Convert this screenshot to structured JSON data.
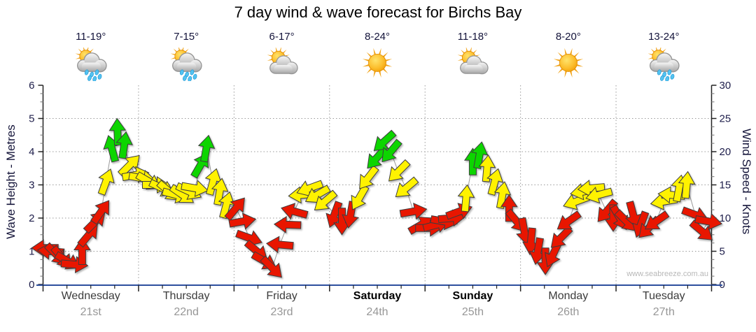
{
  "title": "7 day wind & wave forecast for Birchs Bay",
  "watermark": "www.seabreeze.com.au",
  "days": [
    {
      "name": "Wednesday",
      "date": "21st",
      "temp": "11-19°",
      "icon": "sun-cloud-rain",
      "bold": false
    },
    {
      "name": "Thursday",
      "date": "22nd",
      "temp": "7-15°",
      "icon": "sun-cloud-rain",
      "bold": false
    },
    {
      "name": "Friday",
      "date": "23rd",
      "temp": "6-17°",
      "icon": "sun-cloud",
      "bold": false
    },
    {
      "name": "Saturday",
      "date": "24th",
      "temp": "8-24°",
      "icon": "sun",
      "bold": true
    },
    {
      "name": "Sunday",
      "date": "25th",
      "temp": "11-18°",
      "icon": "sun-cloud",
      "bold": true
    },
    {
      "name": "Monday",
      "date": "26th",
      "temp": "8-20°",
      "icon": "sun",
      "bold": false
    },
    {
      "name": "Tuesday",
      "date": "27th",
      "temp": "13-24°",
      "icon": "sun-cloud-rain",
      "bold": false
    }
  ],
  "chart_data": {
    "type": "wind-arrow-timeseries",
    "x_categories": [
      "Wednesday 21st",
      "Thursday 22nd",
      "Friday 23rd",
      "Saturday 24th",
      "Sunday 25th",
      "Monday 26th",
      "Tuesday 27th"
    ],
    "y_left": {
      "label": "Wave Height - Metres",
      "range": [
        0,
        6
      ],
      "ticks": [
        0,
        1,
        2,
        3,
        4,
        5,
        6
      ]
    },
    "y_right": {
      "label": "Wind Speed - Knots",
      "range": [
        0,
        30
      ],
      "ticks": [
        0,
        5,
        10,
        15,
        20,
        25,
        30
      ]
    },
    "grid": {
      "horizontal_every_knots": 5,
      "vertical_at_day_boundaries": true,
      "style": "dotted"
    },
    "legend_position": "none",
    "speed_colors": {
      "red": "#e81505",
      "yellow": "#fff200",
      "green": "#0bd500"
    },
    "line_color": "#9a9a9a",
    "axis_colors": {
      "x_axis": "#2d4f9e",
      "y_axes": "#222222"
    },
    "arrow_columns": [
      "day_index",
      "day_fraction",
      "knots",
      "color",
      "direction_deg_cw_from_east"
    ],
    "arrows": [
      [
        0,
        0.02,
        5.5,
        "red",
        180
      ],
      [
        0,
        0.08,
        5,
        "red",
        185
      ],
      [
        0,
        0.14,
        4.5,
        "red",
        45
      ],
      [
        0,
        0.2,
        4,
        "red",
        50
      ],
      [
        0,
        0.26,
        3.5,
        "red",
        30
      ],
      [
        0,
        0.33,
        3,
        "red",
        5
      ],
      [
        0,
        0.41,
        5,
        "red",
        270
      ],
      [
        0,
        0.48,
        7.5,
        "red",
        310
      ],
      [
        0,
        0.55,
        9.5,
        "red",
        315
      ],
      [
        0,
        0.61,
        11,
        "red",
        305
      ],
      [
        0,
        0.66,
        15.5,
        "yellow",
        290
      ],
      [
        0,
        0.72,
        20.5,
        "green",
        255
      ],
      [
        0,
        0.78,
        23,
        "green",
        268
      ],
      [
        0,
        0.85,
        21,
        "green",
        278
      ],
      [
        0,
        0.91,
        18,
        "yellow",
        315
      ],
      [
        0,
        0.97,
        16.5,
        "yellow",
        350
      ],
      [
        1,
        0.04,
        16,
        "yellow",
        10
      ],
      [
        1,
        0.11,
        15.5,
        "yellow",
        30
      ],
      [
        1,
        0.18,
        15,
        "yellow",
        0
      ],
      [
        1,
        0.25,
        14.5,
        "yellow",
        25
      ],
      [
        1,
        0.32,
        14,
        "yellow",
        40
      ],
      [
        1,
        0.39,
        13.5,
        "yellow",
        15
      ],
      [
        1,
        0.46,
        13.5,
        "yellow",
        35
      ],
      [
        1,
        0.53,
        14,
        "yellow",
        25
      ],
      [
        1,
        0.59,
        14.5,
        "yellow",
        10
      ],
      [
        1,
        0.65,
        18,
        "green",
        300
      ],
      [
        1,
        0.71,
        20.5,
        "green",
        280
      ],
      [
        1,
        0.78,
        15.5,
        "yellow",
        285
      ],
      [
        1,
        0.85,
        14,
        "yellow",
        280
      ],
      [
        1,
        0.92,
        12,
        "yellow",
        285
      ],
      [
        2,
        0.02,
        11.5,
        "red",
        310
      ],
      [
        2,
        0.09,
        9.5,
        "red",
        350
      ],
      [
        2,
        0.16,
        7,
        "red",
        20
      ],
      [
        2,
        0.24,
        5,
        "red",
        40
      ],
      [
        2,
        0.32,
        3.5,
        "red",
        30
      ],
      [
        2,
        0.4,
        2.5,
        "red",
        45
      ],
      [
        2,
        0.48,
        6,
        "red",
        185
      ],
      [
        2,
        0.56,
        9,
        "red",
        182
      ],
      [
        2,
        0.63,
        11,
        "red",
        195
      ],
      [
        2,
        0.71,
        13.5,
        "yellow",
        175
      ],
      [
        2,
        0.79,
        14.5,
        "yellow",
        160
      ],
      [
        2,
        0.87,
        13.5,
        "yellow",
        150
      ],
      [
        2,
        0.95,
        12.5,
        "yellow",
        140
      ],
      [
        3,
        0.05,
        10.5,
        "red",
        110
      ],
      [
        3,
        0.13,
        9.5,
        "red",
        90
      ],
      [
        3,
        0.22,
        10.5,
        "red",
        100
      ],
      [
        3,
        0.31,
        13,
        "yellow",
        120
      ],
      [
        3,
        0.4,
        16,
        "yellow",
        128
      ],
      [
        3,
        0.49,
        19,
        "green",
        132
      ],
      [
        3,
        0.57,
        21.5,
        "green",
        138
      ],
      [
        3,
        0.64,
        20,
        "green",
        130
      ],
      [
        3,
        0.72,
        17,
        "yellow",
        135
      ],
      [
        3,
        0.8,
        14.5,
        "yellow",
        140
      ],
      [
        3,
        0.88,
        11,
        "red",
        350
      ],
      [
        3,
        0.96,
        9,
        "red",
        330
      ],
      [
        4,
        0.04,
        8.5,
        "red",
        0
      ],
      [
        4,
        0.12,
        9,
        "red",
        345
      ],
      [
        4,
        0.2,
        9.5,
        "red",
        10
      ],
      [
        4,
        0.28,
        10,
        "red",
        355
      ],
      [
        4,
        0.36,
        11,
        "red",
        340
      ],
      [
        4,
        0.43,
        13,
        "yellow",
        275
      ],
      [
        4,
        0.5,
        18.5,
        "green",
        270
      ],
      [
        4,
        0.57,
        19.5,
        "green",
        280
      ],
      [
        4,
        0.65,
        17.5,
        "yellow",
        275
      ],
      [
        4,
        0.73,
        15.5,
        "yellow",
        285
      ],
      [
        4,
        0.81,
        13.5,
        "yellow",
        280
      ],
      [
        4,
        0.88,
        11.5,
        "red",
        270
      ],
      [
        4,
        0.96,
        9.5,
        "red",
        50
      ],
      [
        5,
        0.04,
        8,
        "red",
        80
      ],
      [
        5,
        0.11,
        6.5,
        "red",
        95
      ],
      [
        5,
        0.18,
        5,
        "red",
        100
      ],
      [
        5,
        0.26,
        3.5,
        "red",
        90
      ],
      [
        5,
        0.34,
        4.5,
        "red",
        115
      ],
      [
        5,
        0.42,
        7,
        "red",
        135
      ],
      [
        5,
        0.5,
        9.5,
        "red",
        145
      ],
      [
        5,
        0.58,
        12.5,
        "yellow",
        160
      ],
      [
        5,
        0.66,
        14,
        "yellow",
        170
      ],
      [
        5,
        0.74,
        14.5,
        "yellow",
        175
      ],
      [
        5,
        0.82,
        13.5,
        "yellow",
        165
      ],
      [
        5,
        0.9,
        11,
        "red",
        130
      ],
      [
        5,
        0.97,
        10,
        "red",
        90
      ],
      [
        6,
        0.04,
        10,
        "red",
        60
      ],
      [
        6,
        0.11,
        9.5,
        "red",
        45
      ],
      [
        6,
        0.18,
        10.5,
        "red",
        75
      ],
      [
        6,
        0.26,
        9,
        "red",
        110
      ],
      [
        6,
        0.34,
        8.5,
        "red",
        135
      ],
      [
        6,
        0.42,
        9.5,
        "red",
        145
      ],
      [
        6,
        0.5,
        12.5,
        "yellow",
        170
      ],
      [
        6,
        0.58,
        13.5,
        "yellow",
        185
      ],
      [
        6,
        0.66,
        14.5,
        "yellow",
        280
      ],
      [
        6,
        0.74,
        15,
        "yellow",
        275
      ],
      [
        6,
        0.83,
        10.5,
        "red",
        20
      ],
      [
        6,
        0.9,
        8,
        "red",
        40
      ],
      [
        6,
        0.97,
        9.5,
        "red",
        10
      ]
    ]
  }
}
